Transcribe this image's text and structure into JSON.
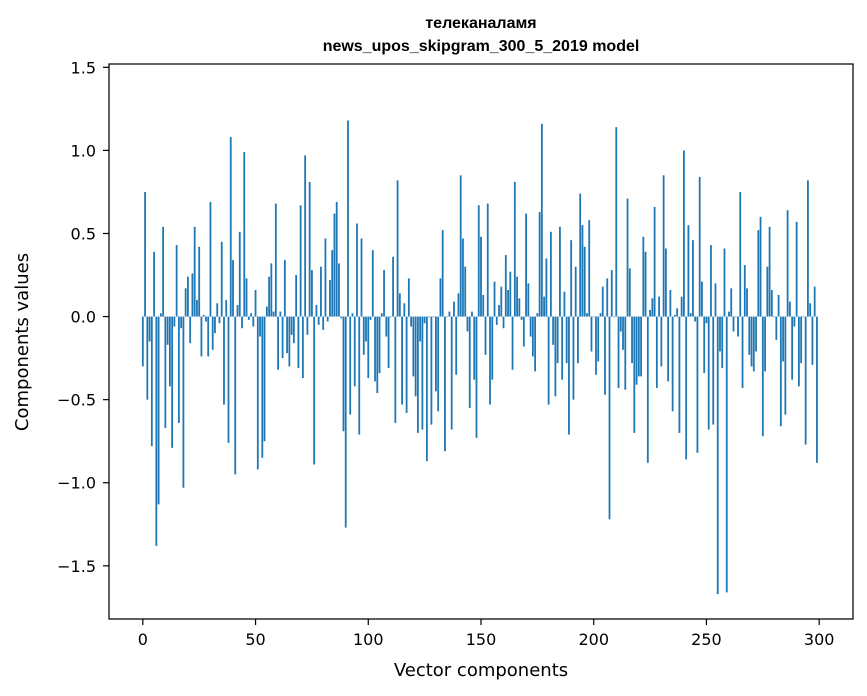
{
  "chart_data": {
    "type": "bar",
    "title": [
      "телеканаламя",
      "news_upos_skipgram_300_5_2019 model"
    ],
    "xlabel": "Vector components",
    "ylabel": "Components values",
    "xlim": [
      -15,
      315
    ],
    "ylim": [
      -1.82,
      1.52
    ],
    "xticks": [
      0,
      50,
      100,
      150,
      200,
      250,
      300
    ],
    "yticks": [
      -1.5,
      -1.0,
      -0.5,
      0.0,
      0.5,
      1.0,
      1.5
    ],
    "ytick_labels": [
      "−1.5",
      "−1.0",
      "−0.5",
      "0.0",
      "0.5",
      "1.0",
      "1.5"
    ],
    "bar_color": "#1f77b4",
    "x": "component index 0..299",
    "values": [
      -0.3,
      0.75,
      -0.5,
      -0.15,
      -0.78,
      0.39,
      -1.38,
      -1.13,
      0.02,
      0.54,
      -0.67,
      -0.17,
      -0.42,
      -0.79,
      -0.06,
      0.43,
      -0.64,
      -0.07,
      -1.03,
      0.17,
      0.24,
      -0.16,
      0.26,
      0.54,
      0.1,
      0.42,
      -0.24,
      0.01,
      -0.03,
      -0.24,
      0.69,
      -0.2,
      -0.1,
      0.08,
      -0.04,
      0.45,
      -0.53,
      0.1,
      -0.76,
      1.08,
      0.34,
      -0.95,
      0.07,
      0.51,
      -0.07,
      0.99,
      0.23,
      -0.02,
      0.02,
      -0.06,
      0.16,
      -0.92,
      -0.12,
      -0.85,
      -0.75,
      0.06,
      0.24,
      0.32,
      0.03,
      0.68,
      -0.32,
      0.03,
      -0.25,
      0.34,
      -0.22,
      -0.3,
      -0.11,
      -0.16,
      0.25,
      -0.31,
      0.67,
      -0.37,
      0.97,
      -0.11,
      0.81,
      0.28,
      -0.89,
      0.07,
      -0.05,
      0.3,
      -0.08,
      0.47,
      -0.03,
      0.22,
      0.4,
      0.62,
      0.69,
      0.32,
      -0.01,
      -0.69,
      -1.27,
      1.18,
      -0.59,
      0.02,
      -0.42,
      0.56,
      -0.71,
      0.47,
      -0.23,
      -0.15,
      -0.37,
      -0.02,
      0.4,
      -0.39,
      -0.46,
      -0.34,
      0.02,
      0.28,
      -0.12,
      -0.31,
      0.0,
      0.36,
      -0.64,
      0.82,
      0.14,
      -0.53,
      0.08,
      -0.58,
      0.23,
      -0.06,
      -0.36,
      -0.48,
      -0.7,
      -0.15,
      -0.68,
      -0.04,
      -0.87,
      0.0,
      -0.65,
      0.0,
      -0.45,
      -0.57,
      0.23,
      0.52,
      -0.81,
      0.0,
      0.03,
      -0.68,
      0.09,
      -0.35,
      0.14,
      0.85,
      0.47,
      0.3,
      -0.09,
      -0.55,
      0.03,
      -0.38,
      -0.73,
      0.67,
      0.48,
      0.13,
      -0.23,
      0.68,
      -0.53,
      -0.38,
      0.21,
      -0.05,
      0.07,
      0.18,
      -0.07,
      0.37,
      0.16,
      0.27,
      -0.32,
      0.81,
      0.24,
      0.11,
      -0.02,
      -0.18,
      0.62,
      0.2,
      -0.12,
      -0.24,
      -0.33,
      0.02,
      0.63,
      1.16,
      0.12,
      0.35,
      -0.53,
      0.51,
      -0.17,
      -0.48,
      -0.28,
      0.54,
      -0.38,
      0.15,
      -0.28,
      -0.71,
      0.46,
      -0.5,
      0.3,
      -0.28,
      0.74,
      0.55,
      0.42,
      0.02,
      0.58,
      -0.21,
      0.0,
      -0.35,
      -0.27,
      0.02,
      0.18,
      -0.47,
      0.23,
      -1.22,
      0.28,
      0.0,
      1.14,
      -0.43,
      -0.09,
      -0.2,
      -0.44,
      0.71,
      0.29,
      -0.28,
      -0.7,
      -0.41,
      -0.36,
      -0.36,
      0.48,
      0.39,
      -0.88,
      0.04,
      0.11,
      0.66,
      -0.43,
      0.12,
      -0.3,
      0.85,
      0.41,
      -0.39,
      0.16,
      -0.57,
      0.01,
      0.05,
      -0.7,
      0.12,
      1.0,
      -0.86,
      0.55,
      0.02,
      0.46,
      -0.03,
      -0.82,
      0.84,
      0.21,
      -0.34,
      -0.04,
      -0.68,
      0.43,
      -0.65,
      0.2,
      -1.67,
      -0.21,
      -0.31,
      0.41,
      -1.66,
      0.03,
      0.17,
      -0.09,
      0.0,
      -0.12,
      0.75,
      -0.43,
      0.31,
      0.17,
      -0.23,
      -0.3,
      -0.33,
      -0.21,
      0.52,
      0.6,
      -0.72,
      -0.33,
      0.3,
      0.54,
      0.16,
      0.0,
      -0.14,
      0.13,
      -0.66,
      -0.27,
      -0.59,
      0.64,
      0.09,
      -0.38,
      -0.06,
      0.57,
      -0.42,
      -0.28,
      0.0,
      -0.77,
      0.82,
      0.08,
      -0.29,
      0.18,
      -0.88
    ]
  }
}
